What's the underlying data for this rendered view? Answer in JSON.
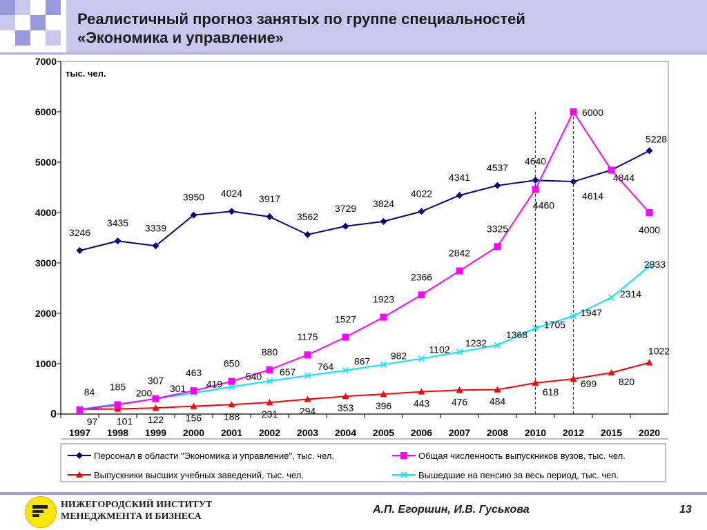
{
  "slide": {
    "title_line1": "Реалистичный прогноз занятых по группе специальностей",
    "title_line2": "«Экономика и управление»",
    "institute_line1": "НИЖЕГОРОДСКИЙ ИНСТИТУТ",
    "institute_line2": "МЕНЕДЖМЕНТА  И  БИЗНЕСА",
    "authors": "А.П. Егоршин,  И.В. Гуськова",
    "page_number": "13"
  },
  "chart_data": {
    "type": "line",
    "ylabel": "тыс. чел.",
    "ylim": [
      0,
      7000
    ],
    "yticks": [
      0,
      1000,
      2000,
      3000,
      4000,
      5000,
      6000,
      7000
    ],
    "categories": [
      "1997",
      "1998",
      "1999",
      "2000",
      "2001",
      "2002",
      "2003",
      "2004",
      "2005",
      "2006",
      "2007",
      "2008",
      "2010",
      "2012",
      "2015",
      "2020"
    ],
    "grid": false,
    "legend_position": "bottom",
    "dashed_verticals_at": [
      "2010",
      "2012"
    ],
    "series": [
      {
        "name": "Персонал в области \"Экономика и управление\", тыс. чел.",
        "color": "#000080",
        "marker": "diamond",
        "values": [
          3246,
          3435,
          3339,
          3950,
          4024,
          3917,
          3562,
          3729,
          3824,
          4022,
          4341,
          4537,
          4640,
          4614,
          4844,
          5228
        ]
      },
      {
        "name": "Общая численность выпускников вузов, тыс. чел.",
        "color": "#ff00ff",
        "marker": "square",
        "values": [
          84,
          185,
          307,
          463,
          650,
          880,
          1175,
          1527,
          1923,
          2366,
          2842,
          3325,
          4460,
          6000,
          4844,
          4000
        ]
      },
      {
        "name": "Выпускники высших учебных заведений, тыс. чел.",
        "color": "#ff0000",
        "marker": "triangle",
        "values": [
          97,
          101,
          122,
          156,
          188,
          231,
          294,
          353,
          396,
          443,
          476,
          484,
          618,
          699,
          820,
          1022
        ]
      },
      {
        "name": "Вышедшие на пенсию за весь период, тыс. чел.",
        "color": "#00e5ff",
        "marker": "x",
        "values": [
          97,
          200,
          301,
          419,
          540,
          657,
          764,
          867,
          982,
          1102,
          1232,
          1368,
          1705,
          1947,
          2314,
          2933
        ]
      }
    ]
  }
}
